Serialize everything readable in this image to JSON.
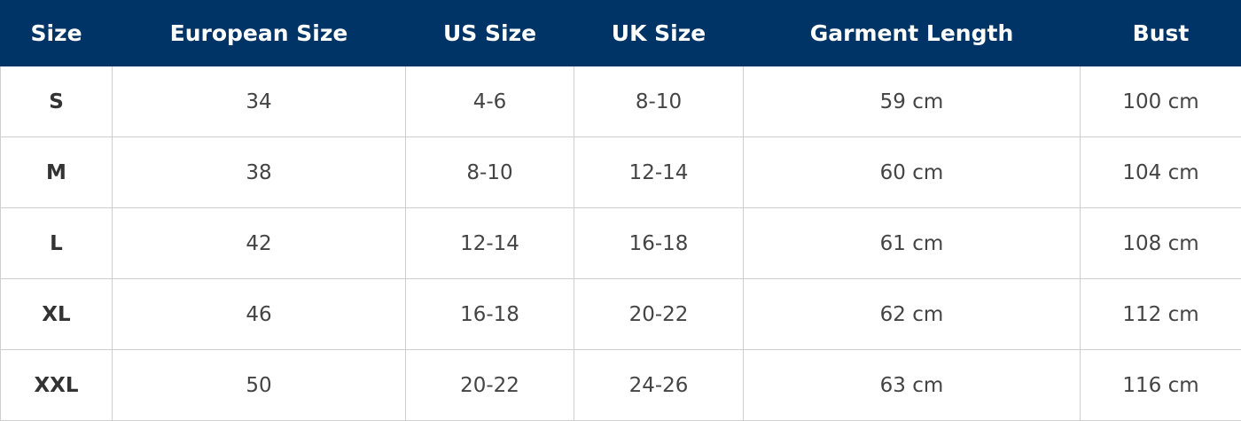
{
  "table": {
    "headers": [
      "Size",
      "European Size",
      "US Size",
      "UK Size",
      "Garment Length",
      "Bust"
    ],
    "rows": [
      [
        "S",
        "34",
        "4-6",
        "8-10",
        "59 cm",
        "100 cm"
      ],
      [
        "M",
        "38",
        "8-10",
        "12-14",
        "60 cm",
        "104 cm"
      ],
      [
        "L",
        "42",
        "12-14",
        "16-18",
        "61 cm",
        "108 cm"
      ],
      [
        "XL",
        "46",
        "16-18",
        "20-22",
        "62 cm",
        "112 cm"
      ],
      [
        "XXL",
        "50",
        "20-22",
        "24-26",
        "63 cm",
        "116 cm"
      ]
    ]
  }
}
